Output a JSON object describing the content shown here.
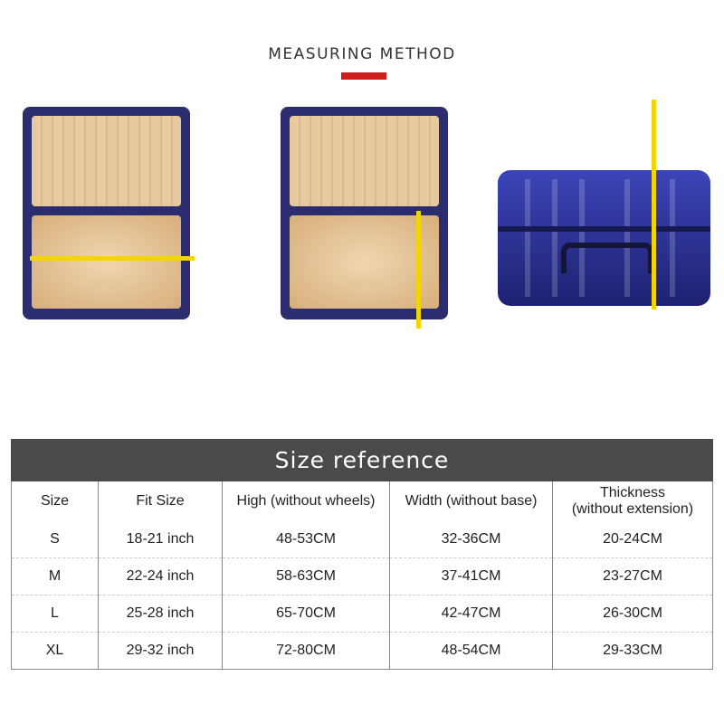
{
  "header": {
    "title": "MEASURING METHOD",
    "accent_color": "#d0201c"
  },
  "images": [
    {
      "name": "open-suitcase-width-measure",
      "icon": "suitcase-open-icon"
    },
    {
      "name": "open-suitcase-height-measure",
      "icon": "suitcase-open-icon"
    },
    {
      "name": "closed-suitcase-thickness-measure",
      "icon": "suitcase-icon"
    }
  ],
  "table": {
    "title": "Size reference",
    "columns": [
      "Size",
      "Fit Size",
      "High (without wheels)",
      "Width (without base)",
      "Thickness\n(without extension)"
    ],
    "rows": [
      [
        "S",
        "18-21 inch",
        "48-53CM",
        "32-36CM",
        "20-24CM"
      ],
      [
        "M",
        "22-24 inch",
        "58-63CM",
        "37-41CM",
        "23-27CM"
      ],
      [
        "L",
        "25-28 inch",
        "65-70CM",
        "42-47CM",
        "26-30CM"
      ],
      [
        "XL",
        "29-32 inch",
        "72-80CM",
        "48-54CM",
        "29-33CM"
      ]
    ]
  }
}
